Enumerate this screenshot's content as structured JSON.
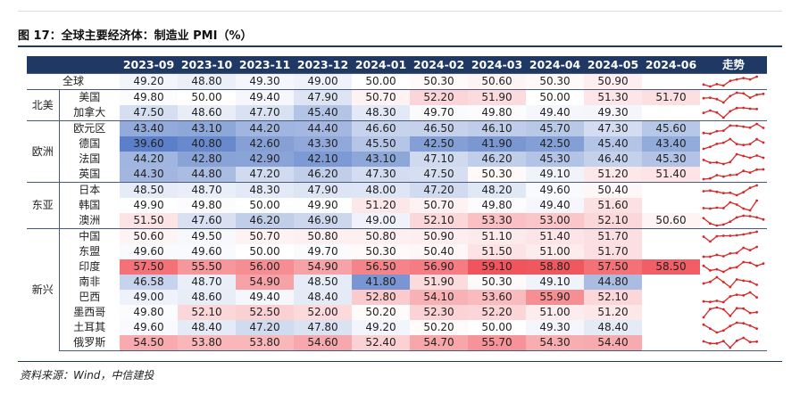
{
  "figure": {
    "title": "图 17：全球主要经济体：制造业 PMI（%）",
    "source": "资料来源：Wind，中信建投"
  },
  "table": {
    "columns": [
      "2023-09",
      "2023-10",
      "2023-11",
      "2023-12",
      "2024-01",
      "2024-02",
      "2024-03",
      "2024-04",
      "2024-05",
      "2024-06"
    ],
    "trend_header": "走势",
    "groups": [
      {
        "region": "全球",
        "rows": [
          {
            "country": "",
            "values": [
              "49.20",
              "48.80",
              "49.30",
              "49.00",
              "50.00",
              "50.30",
              "50.60",
              "50.30",
              "50.90",
              ""
            ]
          }
        ]
      },
      {
        "region": "北美",
        "rows": [
          {
            "country": "美国",
            "values": [
              "49.80",
              "50.00",
              "49.40",
              "47.90",
              "50.70",
              "52.20",
              "51.90",
              "50.00",
              "51.30",
              "51.70"
            ]
          },
          {
            "country": "加拿大",
            "values": [
              "47.50",
              "48.60",
              "47.70",
              "45.40",
              "48.30",
              "49.70",
              "49.80",
              "49.40",
              "49.30",
              ""
            ]
          }
        ]
      },
      {
        "region": "欧洲",
        "rows": [
          {
            "country": "欧元区",
            "values": [
              "43.40",
              "43.10",
              "44.20",
              "44.40",
              "46.60",
              "46.50",
              "46.10",
              "45.70",
              "47.30",
              "45.60"
            ]
          },
          {
            "country": "德国",
            "values": [
              "39.60",
              "40.80",
              "42.60",
              "43.30",
              "45.50",
              "42.50",
              "41.90",
              "42.50",
              "45.40",
              "43.40"
            ]
          },
          {
            "country": "法国",
            "values": [
              "44.20",
              "42.80",
              "42.90",
              "42.10",
              "43.10",
              "47.10",
              "46.20",
              "45.30",
              "46.40",
              "45.30"
            ]
          },
          {
            "country": "英国",
            "values": [
              "44.30",
              "44.80",
              "47.20",
              "46.20",
              "47.30",
              "47.50",
              "50.30",
              "49.10",
              "51.20",
              "51.40"
            ]
          }
        ]
      },
      {
        "region": "东亚",
        "rows": [
          {
            "country": "日本",
            "values": [
              "48.50",
              "48.70",
              "48.30",
              "47.90",
              "48.00",
              "47.20",
              "48.20",
              "49.60",
              "50.40",
              ""
            ]
          },
          {
            "country": "韩国",
            "values": [
              "49.90",
              "49.80",
              "50.00",
              "49.90",
              "51.20",
              "50.70",
              "49.80",
              "49.40",
              "51.60",
              ""
            ]
          },
          {
            "country": "澳洲",
            "values": [
              "51.50",
              "47.60",
              "46.20",
              "46.90",
              "49.00",
              "52.10",
              "53.30",
              "53.00",
              "52.10",
              "50.60"
            ]
          }
        ]
      },
      {
        "region": "新兴",
        "rows": [
          {
            "country": "中国",
            "values": [
              "50.60",
              "49.50",
              "50.70",
              "50.80",
              "50.80",
              "50.90",
              "51.10",
              "51.40",
              "51.70",
              ""
            ]
          },
          {
            "country": "东盟",
            "values": [
              "49.60",
              "49.60",
              "50.00",
              "49.70",
              "50.30",
              "50.40",
              "51.50",
              "51.00",
              "51.70",
              ""
            ]
          },
          {
            "country": "印度",
            "values": [
              "57.50",
              "55.50",
              "56.00",
              "54.90",
              "56.50",
              "56.90",
              "59.10",
              "58.80",
              "57.50",
              "58.50"
            ]
          },
          {
            "country": "南非",
            "values": [
              "46.58",
              "48.70",
              "54.90",
              "48.50",
              "41.80",
              "51.90",
              "50.30",
              "49.10",
              "44.80",
              ""
            ]
          },
          {
            "country": "巴西",
            "values": [
              "49.00",
              "48.60",
              "49.40",
              "48.40",
              "52.80",
              "54.10",
              "53.60",
              "55.90",
              "52.10",
              ""
            ]
          },
          {
            "country": "墨西哥",
            "values": [
              "49.80",
              "52.10",
              "52.50",
              "52.00",
              "50.20",
              "52.30",
              "52.20",
              "51.00",
              "51.20",
              ""
            ]
          },
          {
            "country": "土耳其",
            "values": [
              "49.60",
              "48.40",
              "47.20",
              "47.80",
              "49.20",
              "50.20",
              "50.00",
              "49.30",
              "48.40",
              ""
            ]
          },
          {
            "country": "俄罗斯",
            "values": [
              "54.50",
              "53.80",
              "53.80",
              "54.60",
              "52.40",
              "54.70",
              "55.70",
              "54.30",
              "54.40",
              ""
            ]
          }
        ]
      }
    ]
  },
  "colors": {
    "header_bg": "#1f3864",
    "header_text": "#ffffff",
    "low": "#5b7fc8",
    "mid": "#ffffff",
    "high": "#f0545c",
    "sparkline": "#d62728"
  }
}
